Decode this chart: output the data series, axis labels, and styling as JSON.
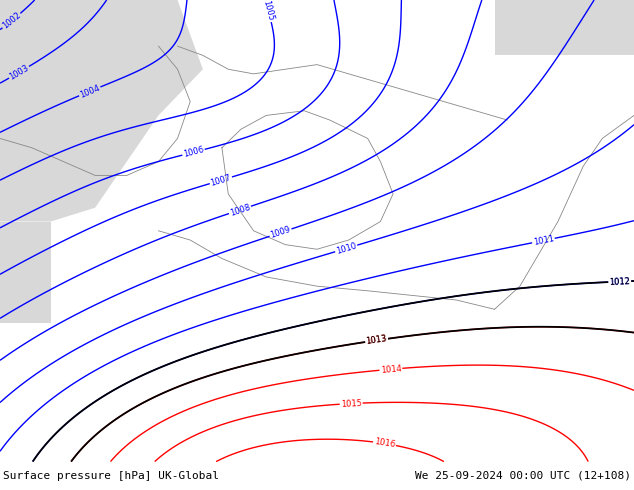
{
  "title_left": "Surface pressure [hPa] UK-Global",
  "title_right": "We 25-09-2024 00:00 UTC (12+108)",
  "land_color": "#c8e6a0",
  "sea_color": "#d8d8d8",
  "fig_width": 6.34,
  "fig_height": 4.9,
  "dpi": 100,
  "footer_fontsize": 8,
  "blue_levels": [
    1002,
    1003,
    1004,
    1005,
    1006,
    1007,
    1008,
    1009,
    1010,
    1011,
    1012
  ],
  "black_levels": [
    1012,
    1013
  ],
  "red_levels": [
    1013,
    1014,
    1015,
    1016
  ],
  "contour_lw": 1.0,
  "label_fontsize": 6
}
